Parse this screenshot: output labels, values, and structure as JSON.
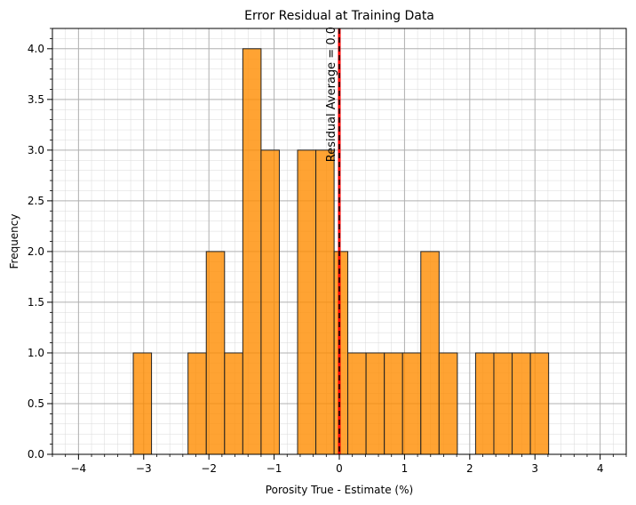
{
  "chart_data": {
    "type": "bar",
    "title": "Error Residual at Training Data",
    "xlabel": "Porosity True - Estimate (%)",
    "ylabel": "Frequency",
    "xlim": [
      -4.4,
      4.4
    ],
    "ylim": [
      0.0,
      4.2
    ],
    "x_ticks": [
      -4,
      -3,
      -2,
      -1,
      0,
      1,
      2,
      3,
      4
    ],
    "x_tick_labels": [
      "−4",
      "−3",
      "−2",
      "−1",
      "0",
      "1",
      "2",
      "3",
      "4"
    ],
    "y_ticks": [
      0.0,
      0.5,
      1.0,
      1.5,
      2.0,
      2.5,
      3.0,
      3.5,
      4.0
    ],
    "y_tick_labels": [
      "0.0",
      "0.5",
      "1.0",
      "1.5",
      "2.0",
      "2.5",
      "3.0",
      "3.5",
      "4.0"
    ],
    "grid": true,
    "minor_grid": true,
    "bar_color": "#ff8c00",
    "bins": [
      {
        "x0": -3.16,
        "x1": -2.88,
        "count": 1
      },
      {
        "x0": -2.32,
        "x1": -2.04,
        "count": 1
      },
      {
        "x0": -2.04,
        "x1": -1.76,
        "count": 2
      },
      {
        "x0": -1.76,
        "x1": -1.48,
        "count": 1
      },
      {
        "x0": -1.48,
        "x1": -1.2,
        "count": 4
      },
      {
        "x0": -1.2,
        "x1": -0.92,
        "count": 3
      },
      {
        "x0": -0.64,
        "x1": -0.36,
        "count": 3
      },
      {
        "x0": -0.36,
        "x1": -0.08,
        "count": 3
      },
      {
        "x0": -0.08,
        "x1": 0.13,
        "count": 2
      },
      {
        "x0": 0.13,
        "x1": 0.41,
        "count": 1
      },
      {
        "x0": 0.41,
        "x1": 0.69,
        "count": 1
      },
      {
        "x0": 0.69,
        "x1": 0.97,
        "count": 1
      },
      {
        "x0": 0.97,
        "x1": 1.25,
        "count": 1
      },
      {
        "x0": 1.25,
        "x1": 1.53,
        "count": 2
      },
      {
        "x0": 1.53,
        "x1": 1.81,
        "count": 1
      },
      {
        "x0": 2.09,
        "x1": 2.37,
        "count": 1
      },
      {
        "x0": 2.37,
        "x1": 2.65,
        "count": 1
      },
      {
        "x0": 2.65,
        "x1": 2.93,
        "count": 1
      },
      {
        "x0": 2.93,
        "x1": 3.21,
        "count": 1
      }
    ],
    "average_line": {
      "x": 0.0,
      "color": "#ff0000",
      "dash_color": "#000000",
      "label": "Residual Average = 0.0"
    }
  }
}
